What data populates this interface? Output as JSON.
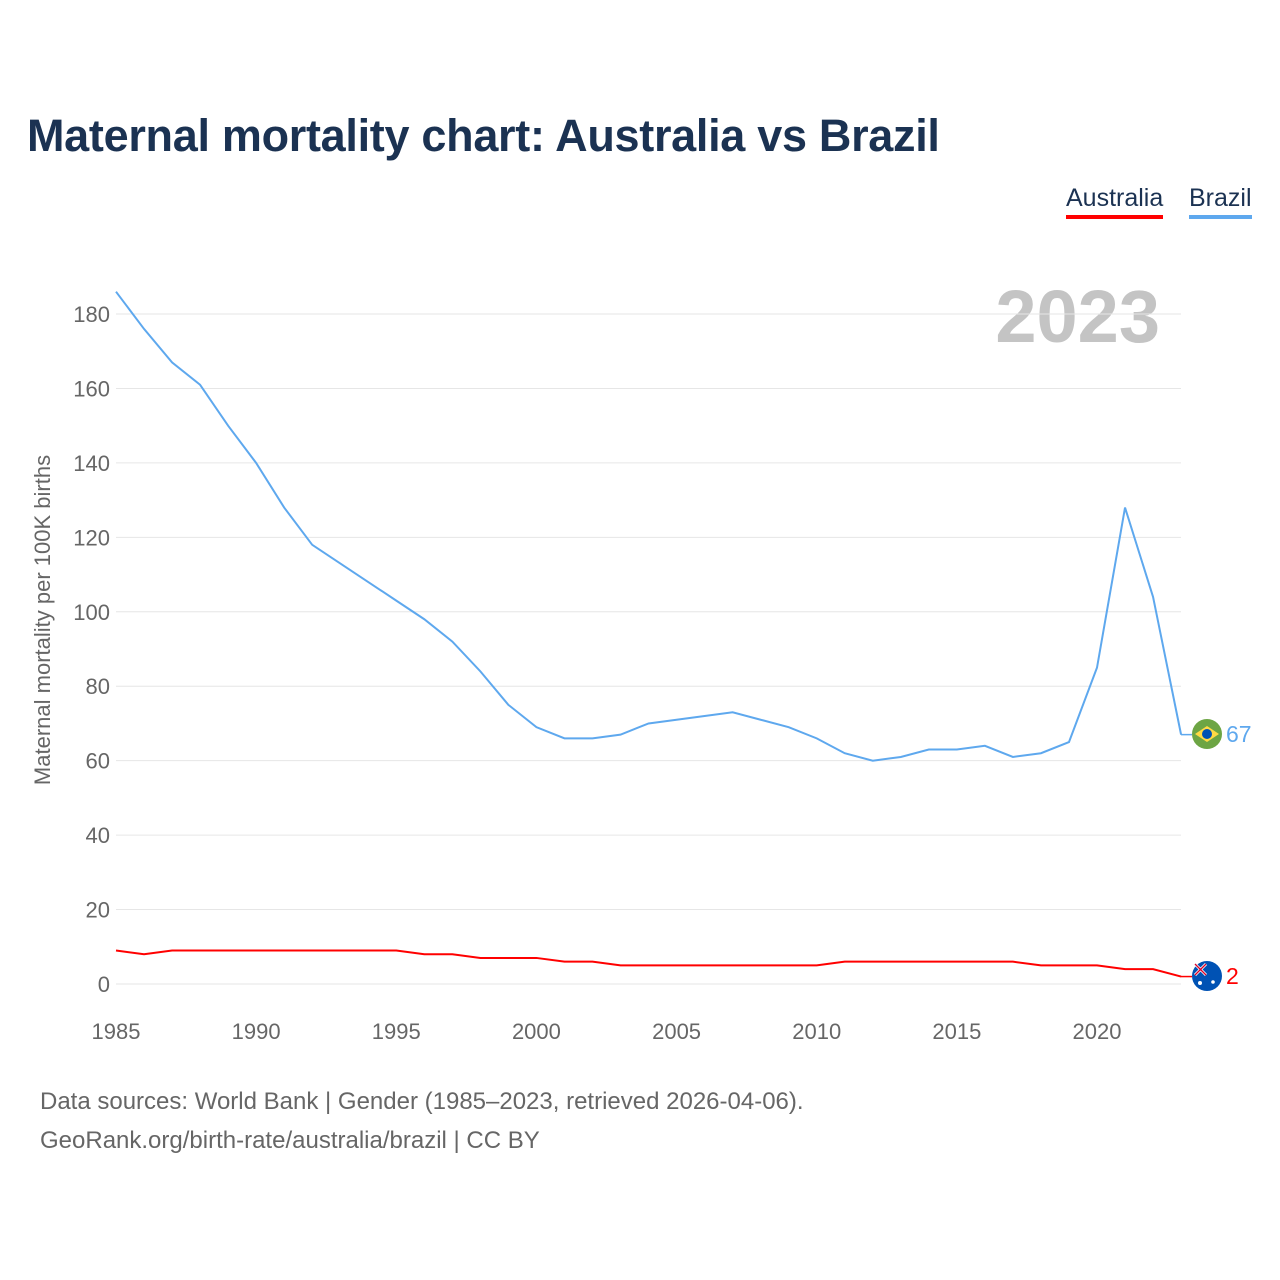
{
  "chart_data": {
    "type": "line",
    "title": "Maternal mortality chart: Australia vs Brazil",
    "ylabel": "Maternal mortality per 100K births",
    "xlabel": "",
    "ylim": [
      0,
      190
    ],
    "xlim": [
      1985,
      2023
    ],
    "yticks": [
      "0",
      "20",
      "40",
      "60",
      "80",
      "100",
      "120",
      "140",
      "160",
      "180"
    ],
    "xticks": [
      "1985",
      "1990",
      "1995",
      "2000",
      "2005",
      "2010",
      "2015",
      "2020"
    ],
    "year_label": "2023",
    "grid": true,
    "legend_placement": "top-right",
    "x": [
      1985,
      1986,
      1987,
      1988,
      1989,
      1990,
      1991,
      1992,
      1993,
      1994,
      1995,
      1996,
      1997,
      1998,
      1999,
      2000,
      2001,
      2002,
      2003,
      2004,
      2005,
      2006,
      2007,
      2008,
      2009,
      2010,
      2011,
      2012,
      2013,
      2014,
      2015,
      2016,
      2017,
      2018,
      2019,
      2020,
      2021,
      2022,
      2023
    ],
    "series": [
      {
        "name": "Australia",
        "color": "#ff0000",
        "end_label": "2",
        "values": [
          9,
          8,
          9,
          9,
          9,
          9,
          9,
          9,
          9,
          9,
          9,
          8,
          8,
          7,
          7,
          7,
          6,
          6,
          5,
          5,
          5,
          5,
          5,
          5,
          5,
          5,
          6,
          6,
          6,
          6,
          6,
          6,
          6,
          5,
          5,
          5,
          4,
          4,
          2
        ]
      },
      {
        "name": "Brazil",
        "color": "#5ea8ee",
        "end_label": "67",
        "values": [
          186,
          176,
          167,
          161,
          150,
          140,
          128,
          118,
          113,
          108,
          103,
          98,
          92,
          84,
          75,
          69,
          66,
          66,
          67,
          70,
          71,
          72,
          73,
          71,
          69,
          66,
          62,
          60,
          61,
          63,
          63,
          64,
          61,
          62,
          65,
          85,
          128,
          104,
          67
        ]
      }
    ]
  },
  "footer": {
    "line1": "Data sources: World Bank | Gender (1985–2023, retrieved 2026-04-06).",
    "line2": "GeoRank.org/birth-rate/australia/brazil | CC BY"
  }
}
